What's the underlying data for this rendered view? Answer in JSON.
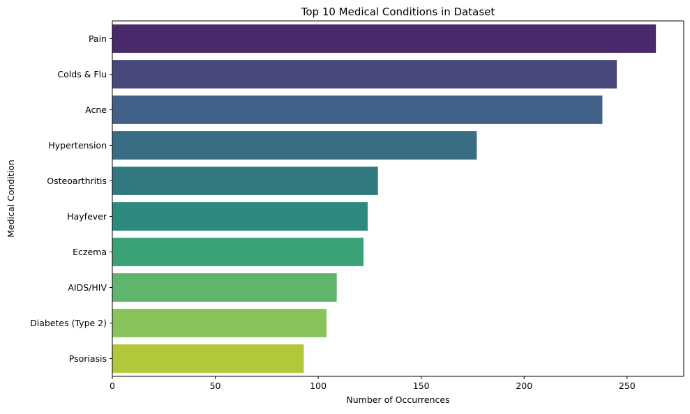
{
  "chart_data": {
    "type": "bar",
    "orientation": "horizontal",
    "title": "Top 10 Medical Conditions in Dataset",
    "xlabel": "Number of Occurrences",
    "ylabel": "Medical Condition",
    "xlim": [
      0,
      277.5
    ],
    "xticks": [
      0,
      50,
      100,
      150,
      200,
      250
    ],
    "grid": false,
    "categories": [
      "Pain",
      "Colds & Flu",
      "Acne",
      "Hypertension",
      "Osteoarthritis",
      "Hayfever",
      "Eczema",
      "AIDS/HIV",
      "Diabetes (Type 2)",
      "Psoriasis"
    ],
    "values": [
      264,
      245,
      238,
      177,
      129,
      124,
      122,
      109,
      104,
      93
    ],
    "colors": [
      "#4a2a6a",
      "#48487c",
      "#41608a",
      "#3a6d84",
      "#32797f",
      "#2e8a7e",
      "#3ba177",
      "#5fb56e",
      "#88c45b",
      "#b2c83a"
    ]
  }
}
